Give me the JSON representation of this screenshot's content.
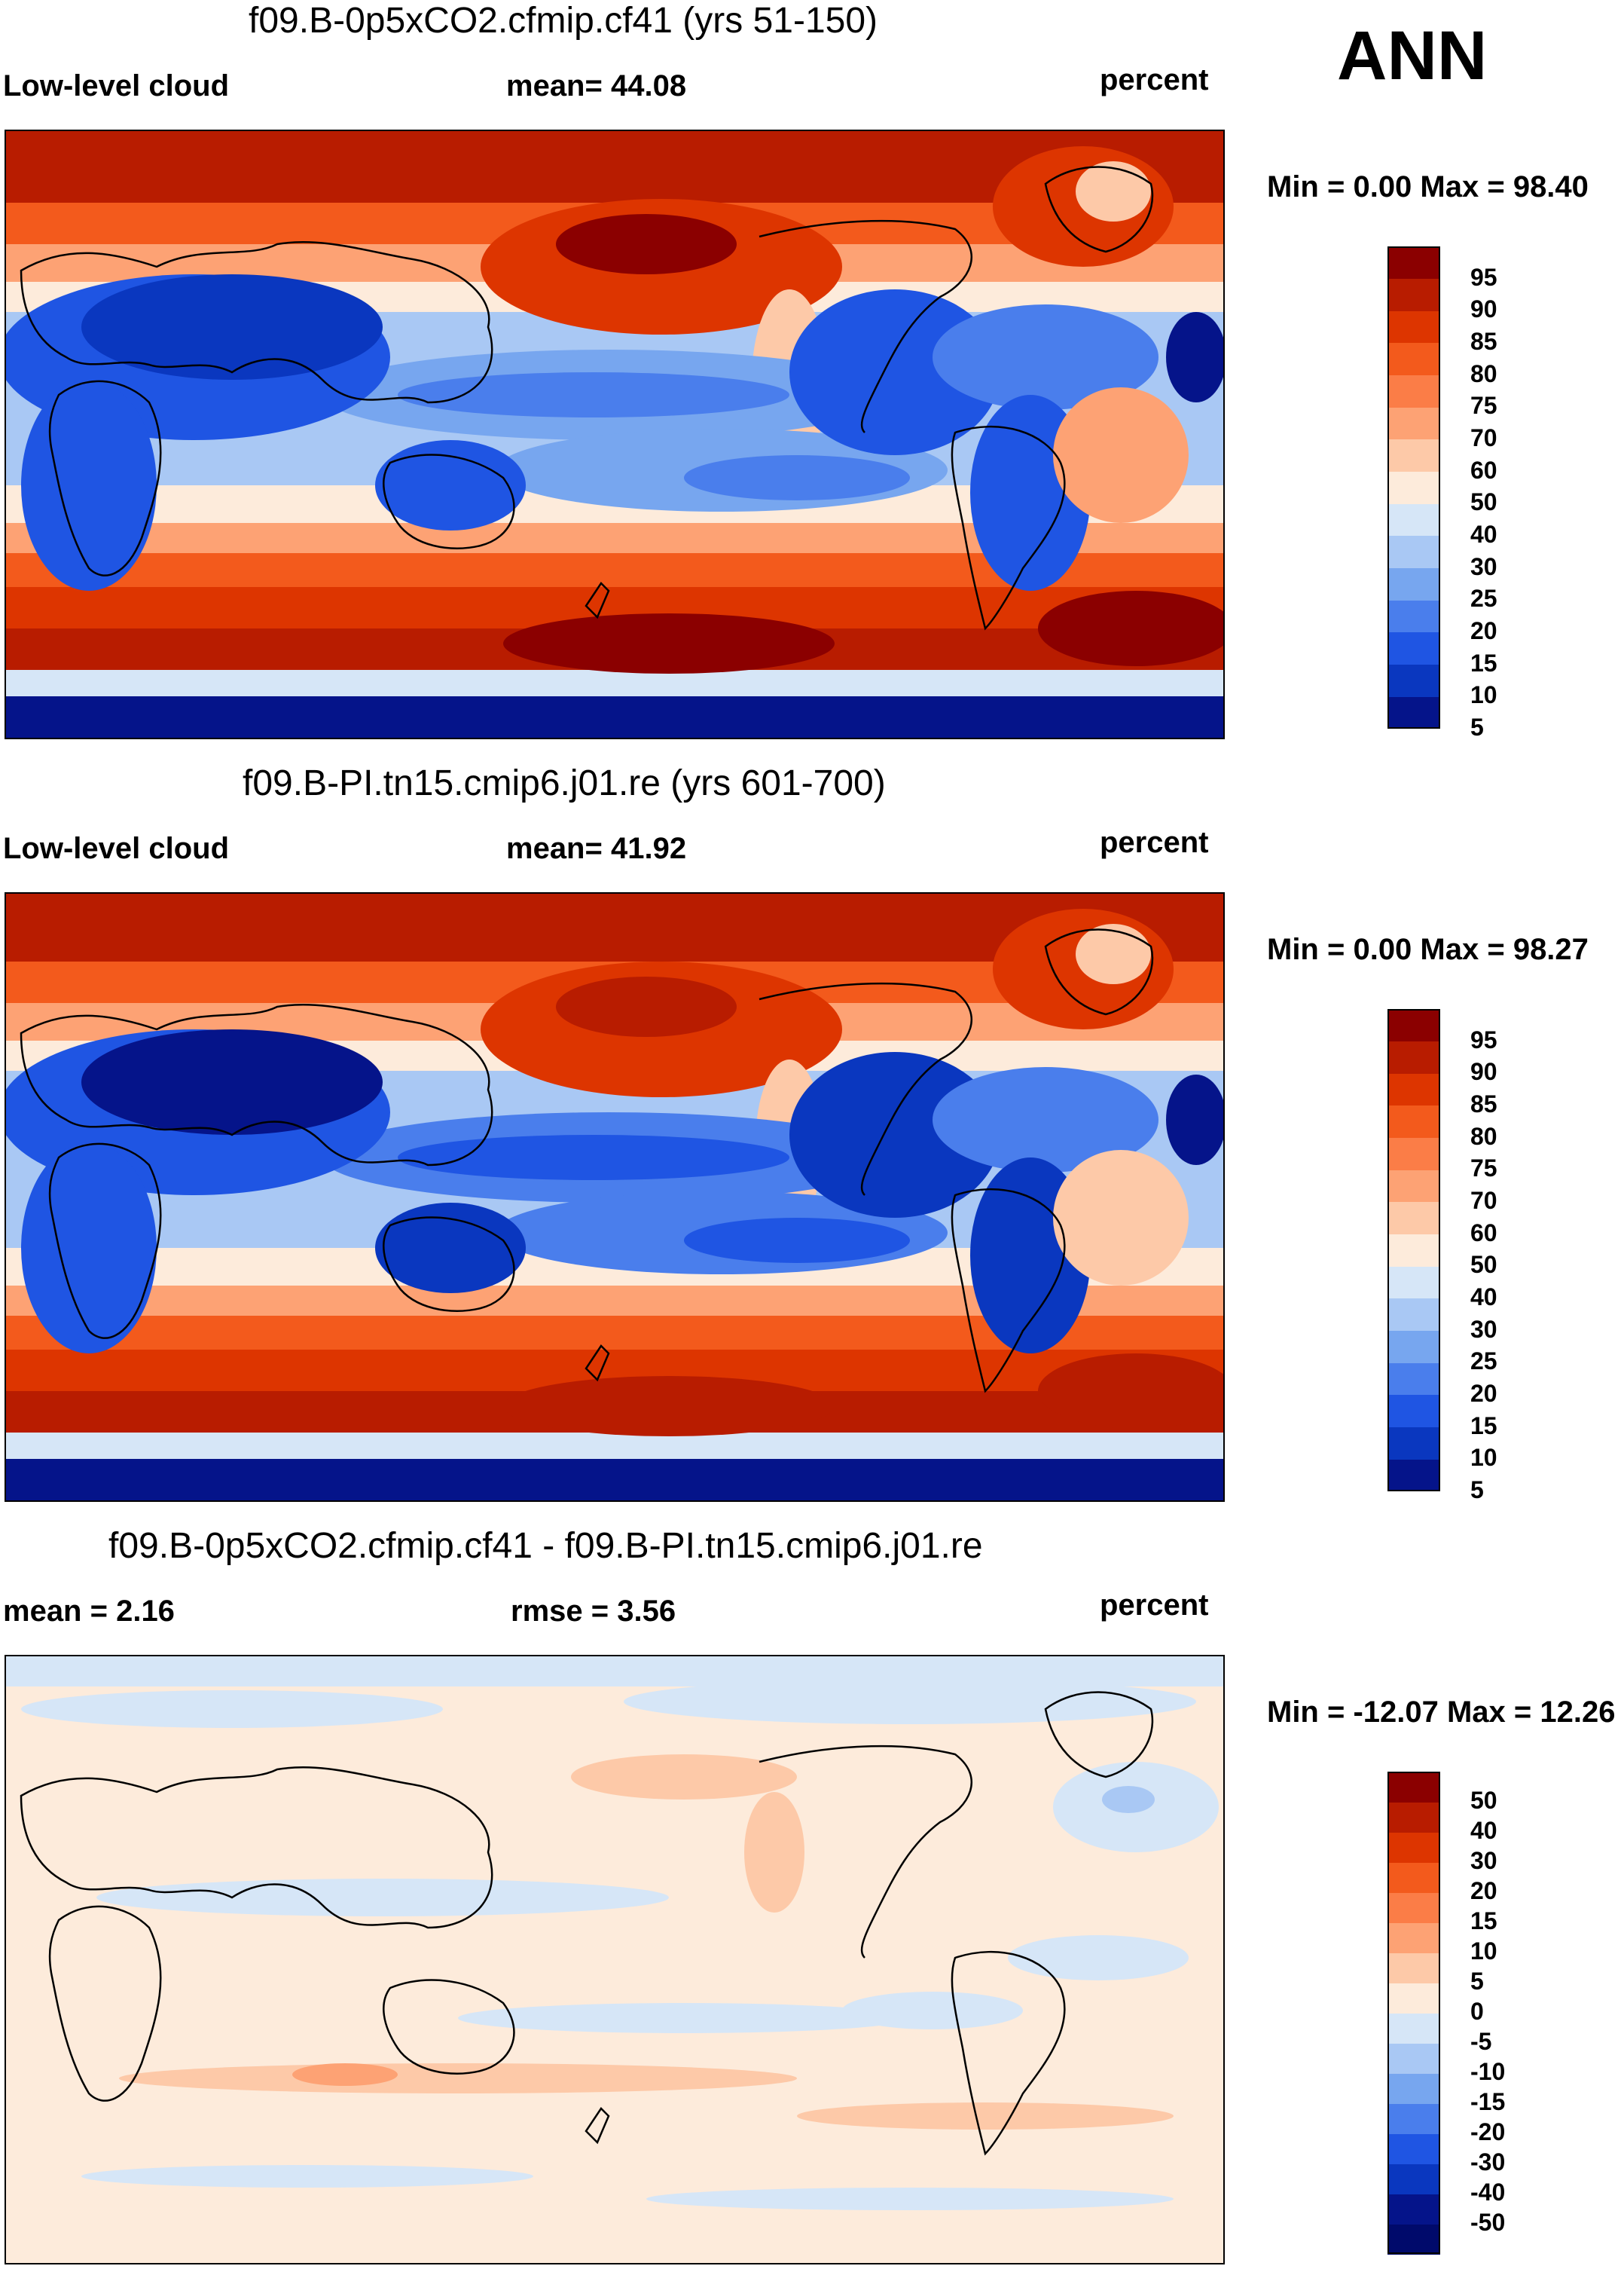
{
  "season": "ANN",
  "panels": [
    {
      "title": "f09.B-0p5xCO2.cfmip.cf41 (yrs 51-150)",
      "left_label": "Low-level cloud",
      "center_label": "mean=  44.08",
      "units": "percent",
      "minmax": "Min =   0.00 Max =  98.40",
      "kind": "abs"
    },
    {
      "title": "f09.B-PI.tn15.cmip6.j01.re (yrs 601-700)",
      "left_label": "Low-level cloud",
      "center_label": "mean=  41.92",
      "units": "percent",
      "minmax": "Min =   0.00 Max =  98.27",
      "kind": "abs"
    },
    {
      "title": "f09.B-0p5xCO2.cfmip.cf41 - f09.B-PI.tn15.cmip6.j01.re",
      "left_label": "mean =   2.16",
      "center_label": "rmse =   3.56",
      "units": "percent",
      "minmax": "Min = -12.07 Max =  12.26",
      "kind": "diff"
    }
  ],
  "chart_data": [
    {
      "type": "heatmap",
      "title": "f09.B-0p5xCO2.cfmip.cf41 (yrs 51-150)",
      "variable": "Low-level cloud",
      "units": "percent",
      "mean": 44.08,
      "min": 0.0,
      "max": 98.4,
      "colorbar_levels": [
        "95",
        "90",
        "85",
        "80",
        "75",
        "70",
        "60",
        "50",
        "40",
        "30",
        "25",
        "20",
        "15",
        "10",
        "5"
      ],
      "colors": [
        "#8b0000",
        "#b81c00",
        "#dd3500",
        "#f35a1c",
        "#fb7d47",
        "#fda274",
        "#fdc9a8",
        "#fdebdb",
        "#d6e6f7",
        "#a9c8f4",
        "#77a6ef",
        "#4a7eec",
        "#1f55e3",
        "#0a37bf",
        "#05148a"
      ]
    },
    {
      "type": "heatmap",
      "title": "f09.B-PI.tn15.cmip6.j01.re (yrs 601-700)",
      "variable": "Low-level cloud",
      "units": "percent",
      "mean": 41.92,
      "min": 0.0,
      "max": 98.27,
      "colorbar_levels": [
        "95",
        "90",
        "85",
        "80",
        "75",
        "70",
        "60",
        "50",
        "40",
        "30",
        "25",
        "20",
        "15",
        "10",
        "5"
      ],
      "colors": [
        "#8b0000",
        "#b81c00",
        "#dd3500",
        "#f35a1c",
        "#fb7d47",
        "#fda274",
        "#fdc9a8",
        "#fdebdb",
        "#d6e6f7",
        "#a9c8f4",
        "#77a6ef",
        "#4a7eec",
        "#1f55e3",
        "#0a37bf",
        "#05148a"
      ]
    },
    {
      "type": "heatmap",
      "title": "f09.B-0p5xCO2.cfmip.cf41 - f09.B-PI.tn15.cmip6.j01.re",
      "units": "percent",
      "mean": 2.16,
      "rmse": 3.56,
      "min": -12.07,
      "max": 12.26,
      "colorbar_levels": [
        "50",
        "40",
        "30",
        "20",
        "15",
        "10",
        "5",
        "0",
        "-5",
        "-10",
        "-15",
        "-20",
        "-30",
        "-40",
        "-50"
      ],
      "colors": [
        "#8b0000",
        "#b81c00",
        "#dd3500",
        "#f35a1c",
        "#fb7d47",
        "#fda274",
        "#fdc9a8",
        "#fdebdb",
        "#d6e6f7",
        "#a9c8f4",
        "#77a6ef",
        "#4a7eec",
        "#1f55e3",
        "#0a37bf",
        "#05148a",
        "#000a6b"
      ]
    }
  ]
}
